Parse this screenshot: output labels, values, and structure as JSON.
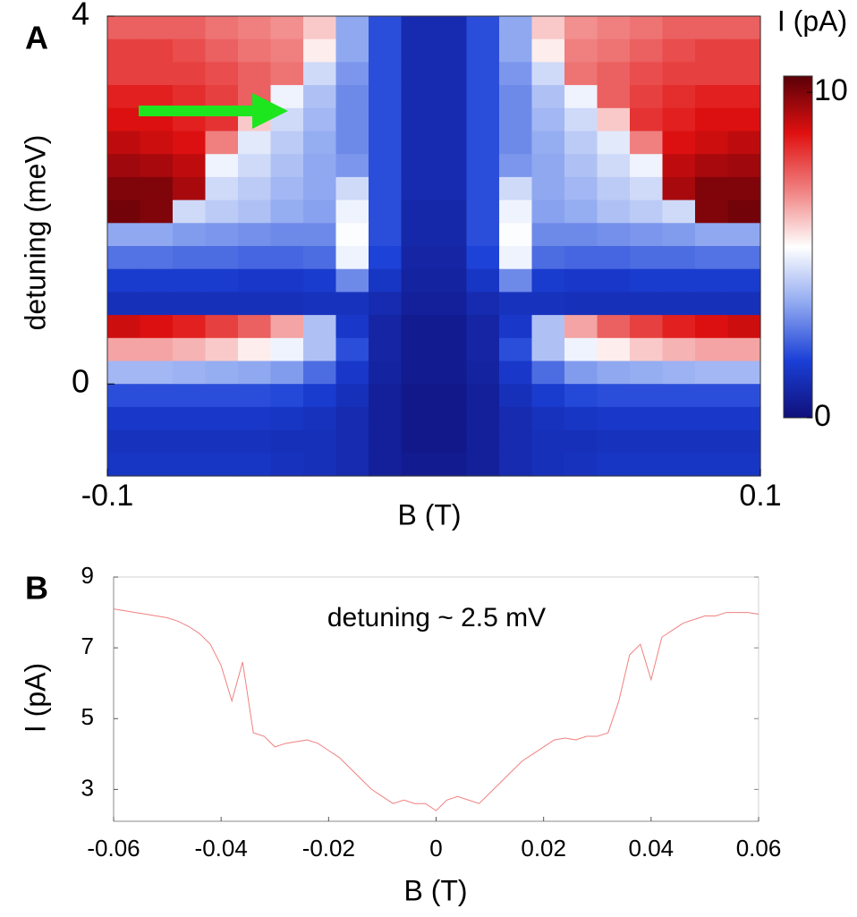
{
  "chart_data": [
    {
      "type": "heatmap",
      "label": "A",
      "xlabel": "B (T)",
      "ylabel": "detuning (meV)",
      "xlim": [
        -0.1,
        0.1
      ],
      "ylim": [
        -1,
        4
      ],
      "xticks": [
        -0.1,
        0.1
      ],
      "yticks": [
        0,
        4
      ],
      "x": [
        -0.095,
        -0.085,
        -0.075,
        -0.065,
        -0.055,
        -0.045,
        -0.035,
        -0.025,
        -0.015,
        -0.005,
        0.005,
        0.015,
        0.025,
        0.035,
        0.045,
        0.055,
        0.065,
        0.075,
        0.085,
        0.095
      ],
      "y": [
        3.875,
        3.625,
        3.375,
        3.125,
        2.875,
        2.625,
        2.375,
        2.125,
        1.875,
        1.625,
        1.375,
        1.125,
        0.875,
        0.625,
        0.375,
        0.125,
        -0.125,
        -0.375,
        -0.625,
        -0.875
      ],
      "z": [
        [
          7.5,
          7.5,
          7.5,
          7.2,
          7,
          6.8,
          6,
          3.5,
          2,
          1,
          1,
          2,
          3.5,
          6,
          6.8,
          7,
          7.2,
          7.5,
          7.5,
          7.5
        ],
        [
          8,
          8,
          7.8,
          7.5,
          7.2,
          7,
          5.5,
          3.5,
          2,
          1,
          1,
          2,
          3.5,
          5.5,
          7,
          7.2,
          7.5,
          7.8,
          8,
          8
        ],
        [
          8,
          8,
          8,
          7.8,
          7.5,
          7.2,
          4.5,
          3.2,
          2,
          1,
          1,
          2,
          3.2,
          4.5,
          7.2,
          7.5,
          7.8,
          8,
          8,
          8
        ],
        [
          8.5,
          8.5,
          8.3,
          8,
          7.5,
          5,
          4,
          3,
          2,
          1,
          1,
          2,
          3,
          4,
          5,
          7.5,
          8,
          8.3,
          8.5,
          8.5
        ],
        [
          8.8,
          8.8,
          8.5,
          8.2,
          6,
          4.5,
          3.8,
          3,
          2,
          1,
          1,
          2,
          3,
          3.8,
          4.5,
          6,
          8.2,
          8.5,
          8.8,
          8.8
        ],
        [
          9.2,
          9,
          8.8,
          7,
          4.8,
          4.2,
          3.6,
          3,
          2,
          1,
          1,
          2,
          3,
          3.6,
          4.2,
          4.8,
          7,
          8.8,
          9,
          9.2
        ],
        [
          9.6,
          9.5,
          9.2,
          5,
          4.5,
          4,
          3.5,
          3.2,
          2,
          1,
          1,
          2,
          3.2,
          3.5,
          4,
          4.5,
          5,
          9.2,
          9.5,
          9.6
        ],
        [
          10,
          10,
          9.5,
          4.5,
          4.2,
          3.8,
          3.5,
          4.5,
          2,
          1,
          1,
          2,
          4.5,
          3.5,
          3.8,
          4.2,
          4.5,
          9.5,
          10,
          10
        ],
        [
          10.2,
          10,
          4.5,
          4.2,
          4,
          3.6,
          3.4,
          5,
          2,
          0.9,
          0.9,
          2,
          5,
          3.4,
          3.6,
          4,
          4.2,
          4.5,
          10,
          10.2
        ],
        [
          3.5,
          3.5,
          3.3,
          3.2,
          3.1,
          3,
          3,
          5.2,
          2,
          0.9,
          0.9,
          2,
          5.2,
          3,
          3,
          3.1,
          3.2,
          3.3,
          3.5,
          3.5
        ],
        [
          2.6,
          2.6,
          2.5,
          2.5,
          2.4,
          2.4,
          2.5,
          5,
          1.8,
          0.8,
          0.8,
          1.8,
          5,
          2.5,
          2.4,
          2.4,
          2.5,
          2.5,
          2.6,
          2.6
        ],
        [
          1.6,
          1.6,
          1.6,
          1.6,
          1.5,
          1.5,
          1.6,
          3,
          1.4,
          0.7,
          0.7,
          1.4,
          3,
          1.6,
          1.5,
          1.5,
          1.6,
          1.6,
          1.6,
          1.6
        ],
        [
          1.2,
          1.2,
          1.2,
          1.2,
          1.2,
          1.2,
          1.3,
          1.3,
          1,
          0.6,
          0.6,
          1,
          1.3,
          1.3,
          1.2,
          1.2,
          1.2,
          1.2,
          1.2,
          1.2
        ],
        [
          9,
          8.8,
          8.5,
          8,
          7.5,
          6.5,
          4,
          1.5,
          0.8,
          0.4,
          0.4,
          0.8,
          1.5,
          4,
          6.5,
          7.5,
          8,
          8.5,
          8.8,
          9
        ],
        [
          6.5,
          6.5,
          6.3,
          6,
          5.5,
          5,
          4,
          2,
          0.8,
          0.4,
          0.4,
          0.8,
          2,
          4,
          5,
          5.5,
          6,
          6.3,
          6.5,
          6.5
        ],
        [
          3.8,
          3.8,
          3.7,
          3.6,
          3.5,
          3.3,
          2.5,
          1.5,
          0.7,
          0.4,
          0.4,
          0.7,
          1.5,
          2.5,
          3.3,
          3.5,
          3.6,
          3.7,
          3.8,
          3.8
        ],
        [
          2,
          2,
          2,
          2,
          2,
          1.9,
          1.6,
          1.2,
          0.6,
          0.3,
          0.3,
          0.6,
          1.2,
          1.6,
          1.9,
          2,
          2,
          2,
          2,
          2
        ],
        [
          1.5,
          1.5,
          1.5,
          1.5,
          1.5,
          1.4,
          1.3,
          1,
          0.6,
          0.3,
          0.3,
          0.6,
          1,
          1.3,
          1.4,
          1.5,
          1.5,
          1.5,
          1.5,
          1.5
        ],
        [
          1.3,
          1.3,
          1.3,
          1.3,
          1.3,
          1.2,
          1.2,
          1,
          0.6,
          0.3,
          0.3,
          0.6,
          1,
          1.2,
          1.2,
          1.3,
          1.3,
          1.3,
          1.3,
          1.3
        ],
        [
          1.4,
          1.4,
          1.4,
          1.4,
          1.4,
          1.3,
          1.2,
          1,
          0.6,
          0.4,
          0.4,
          0.6,
          1,
          1.2,
          1.3,
          1.4,
          1.4,
          1.4,
          1.4,
          1.4
        ]
      ],
      "colorbar": {
        "title": "I (pA)",
        "lim": [
          0,
          10.5
        ],
        "ticks": [
          0,
          10
        ],
        "colors": [
          "#10107a",
          "#1a3fd6",
          "#8fa8f0",
          "#ffffff",
          "#f08080",
          "#e01010",
          "#5a0008"
        ]
      }
    },
    {
      "type": "line",
      "label": "B",
      "xlabel": "B (T)",
      "ylabel": "I (pA)",
      "annotation": "detuning ~ 2.5 mV",
      "color": "#f08080",
      "xlim": [
        -0.06,
        0.06
      ],
      "ylim": [
        2.1,
        9
      ],
      "xticks": [
        -0.06,
        -0.04,
        -0.02,
        0,
        0.02,
        0.04,
        0.06
      ],
      "yticks": [
        3,
        5,
        7,
        9
      ],
      "x": [
        -0.06,
        -0.058,
        -0.056,
        -0.054,
        -0.052,
        -0.05,
        -0.048,
        -0.046,
        -0.044,
        -0.042,
        -0.04,
        -0.038,
        -0.036,
        -0.034,
        -0.032,
        -0.03,
        -0.028,
        -0.026,
        -0.024,
        -0.022,
        -0.02,
        -0.018,
        -0.016,
        -0.014,
        -0.012,
        -0.01,
        -0.008,
        -0.006,
        -0.004,
        -0.002,
        0,
        0.002,
        0.004,
        0.006,
        0.008,
        0.01,
        0.012,
        0.014,
        0.016,
        0.018,
        0.02,
        0.022,
        0.024,
        0.026,
        0.028,
        0.03,
        0.032,
        0.034,
        0.036,
        0.038,
        0.04,
        0.042,
        0.044,
        0.046,
        0.048,
        0.05,
        0.052,
        0.054,
        0.056,
        0.058,
        0.06
      ],
      "values": [
        8.1,
        8.05,
        8.0,
        7.95,
        7.9,
        7.85,
        7.75,
        7.6,
        7.4,
        7.1,
        6.5,
        5.5,
        6.6,
        4.6,
        4.5,
        4.2,
        4.3,
        4.35,
        4.4,
        4.3,
        4.1,
        3.9,
        3.6,
        3.3,
        3.0,
        2.8,
        2.6,
        2.7,
        2.6,
        2.6,
        2.4,
        2.7,
        2.8,
        2.7,
        2.6,
        2.9,
        3.2,
        3.5,
        3.8,
        4.0,
        4.2,
        4.4,
        4.45,
        4.4,
        4.5,
        4.5,
        4.6,
        5.5,
        6.8,
        7.1,
        6.1,
        7.3,
        7.5,
        7.7,
        7.8,
        7.9,
        7.9,
        8.0,
        8.0,
        8.0,
        7.95
      ]
    }
  ]
}
